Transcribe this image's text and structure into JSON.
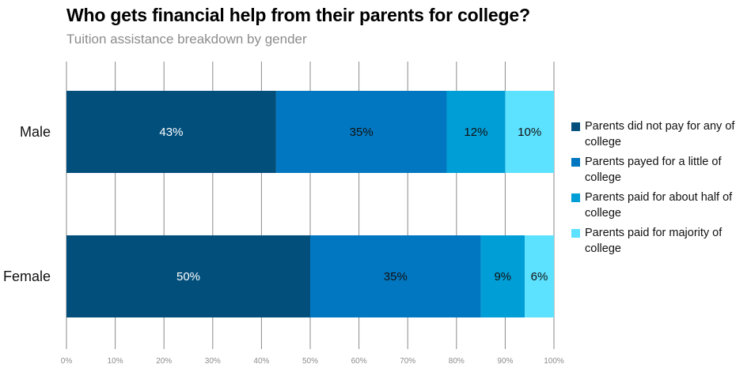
{
  "chart_data": {
    "type": "bar",
    "orientation": "horizontal",
    "stacked": true,
    "title": "Who gets financial help from their parents for college?",
    "subtitle": "Tuition assistance breakdown by gender",
    "categories": [
      "Male",
      "Female"
    ],
    "series": [
      {
        "name": "Parents did not pay for any of college",
        "color": "#024f7c",
        "label_color": "#ffffff",
        "values": [
          43,
          50
        ]
      },
      {
        "name": "Parents payed for a little of college",
        "color": "#0077c0",
        "label_color": "#111111",
        "values": [
          35,
          35
        ]
      },
      {
        "name": "Parents paid for about half of college",
        "color": "#009ed6",
        "label_color": "#111111",
        "values": [
          12,
          9
        ]
      },
      {
        "name": "Parents paid for majority of college",
        "color": "#5ce1ff",
        "label_color": "#111111",
        "values": [
          10,
          6
        ]
      }
    ],
    "data_labels": [
      [
        "43%",
        "35%",
        "12%",
        "10%"
      ],
      [
        "50%",
        "35%",
        "9%",
        "6%"
      ]
    ],
    "xlim": [
      0,
      100
    ],
    "xticks": [
      0,
      10,
      20,
      30,
      40,
      50,
      60,
      70,
      80,
      90,
      100
    ],
    "xtick_labels": [
      "0%",
      "10%",
      "20%",
      "30%",
      "40%",
      "50%",
      "60%",
      "70%",
      "80%",
      "90%",
      "100%"
    ],
    "grid": true,
    "legend_position": "right"
  }
}
